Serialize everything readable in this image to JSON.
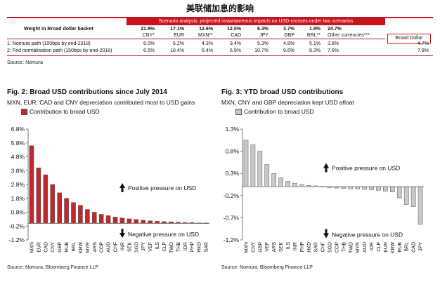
{
  "page_title": "美联储加息的影响",
  "scenario_table": {
    "banner": "Scenario analysis: projected instantaneous impacts on USD-crosses under two scenarios",
    "weight_label": "Weight in Broad dollar basket",
    "weights": [
      "21.9%",
      "17.1%",
      "12.6%",
      "12.0%",
      "6.3%",
      "3.7%",
      "1.8%",
      "24.7%"
    ],
    "currencies": [
      "CNY*",
      "EUR",
      "MXN**",
      "CAD",
      "JPY",
      "GBP",
      "BRL**",
      "Other currencies***"
    ],
    "broad_dollar_label": "Broad Dollar",
    "rows": [
      {
        "label": "1: Nomura path (100bps by end-2018)",
        "values": [
          "6.0%",
          "5.2%",
          "4.3%",
          "3.4%",
          "5.3%",
          "4.8%",
          "5.1%",
          "3.8%"
        ],
        "broad": "4.7%"
      },
      {
        "label": "2: Fed normalisation path (150bps by end-2018)",
        "values": [
          "6.5%",
          "10.4%",
          "6.4%",
          "6.9%",
          "10.7%",
          "9.6%",
          "8.3%",
          "7.6%"
        ],
        "broad": "7.9%"
      }
    ],
    "source": "Source: Nomura"
  },
  "fig2": {
    "title": "Fig. 2: Broad USD contributions since July 2014",
    "subtitle": "MXN, EUR, CAD and CNY depreciation contributed most to USD gains",
    "legend": "Contribution to broad USD",
    "annot_pos": "Positive pressure on USD",
    "annot_neg": "Negative pressure on USD",
    "source": "Source: Nomura, Bloomberg Finance LLP",
    "color": "#c0282d"
  },
  "fig3": {
    "title": "Fig. 3: YTD broad USD contributions",
    "subtitle": "MXN, CNY and GBP depreciation kept USD afloat",
    "legend": "Contribution to broad USD",
    "annot_pos": "Positive pressure on USD",
    "annot_neg": "Negative pressure on USD",
    "source": "Source: Nomura, Bloomberg Finance LLP",
    "color": "#c8c8c8"
  },
  "chart_data": [
    {
      "type": "bar",
      "title": "Fig. 2: Broad USD contributions since July 2014",
      "categories": [
        "MXN",
        "EUR",
        "CAD",
        "CNY",
        "GBP",
        "RUB",
        "BRL",
        "KRW",
        "MYR",
        "ARS",
        "COP",
        "AUD",
        "CHF",
        "INR",
        "SEK",
        "SGD",
        "JPY",
        "VEF",
        "ILS",
        "CLP",
        "TWD",
        "THB",
        "IDR",
        "PHP",
        "HKD",
        "SAR"
      ],
      "values": [
        5.6,
        4.0,
        3.5,
        2.8,
        2.2,
        1.8,
        1.5,
        1.3,
        1.0,
        0.8,
        0.65,
        0.55,
        0.45,
        0.38,
        0.32,
        0.28,
        0.22,
        0.18,
        0.15,
        0.12,
        0.1,
        0.08,
        0.06,
        0.05,
        0.03,
        0.02
      ],
      "yticks": [
        "6.8%",
        "5.8%",
        "4.8%",
        "3.8%",
        "2.8%",
        "1.8%",
        "0.8%",
        "-0.2%",
        "-1.2%"
      ],
      "ylim": [
        -1.2,
        6.8
      ]
    },
    {
      "type": "bar",
      "title": "Fig. 3: YTD broad USD contributions",
      "categories": [
        "MXN",
        "CNY",
        "GBP",
        "VEF",
        "ARS",
        "SEK",
        "ILS",
        "INR",
        "PHP",
        "HKD",
        "SAR",
        "CHF",
        "SGD",
        "COP",
        "THB",
        "TWD",
        "MYR",
        "AUD",
        "IDR",
        "CLP",
        "EUR",
        "KRW",
        "RUB",
        "BRL",
        "CAD",
        "JPY"
      ],
      "values": [
        1.05,
        0.95,
        0.8,
        0.5,
        0.3,
        0.2,
        0.12,
        0.08,
        0.05,
        0.03,
        0.02,
        0.01,
        -0.02,
        -0.03,
        -0.04,
        -0.05,
        -0.05,
        -0.06,
        -0.07,
        -0.08,
        -0.1,
        -0.12,
        -0.25,
        -0.4,
        -0.45,
        -0.85
      ],
      "yticks": [
        "1.3%",
        "0.8%",
        "0.3%",
        "-0.2%",
        "-0.7%",
        "-1.2%"
      ],
      "ylim": [
        -1.2,
        1.3
      ]
    }
  ]
}
